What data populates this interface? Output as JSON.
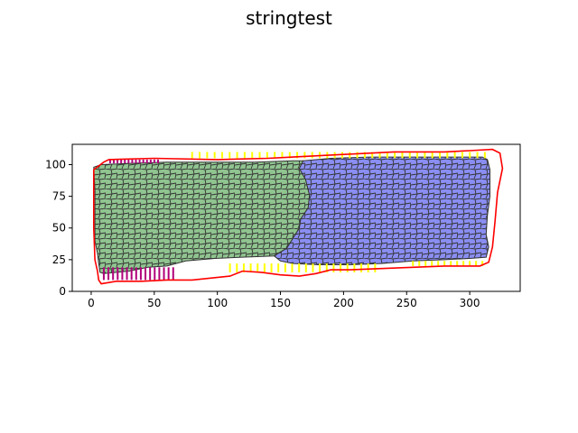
{
  "chart_data": {
    "type": "tissue-plot",
    "title": "stringtest",
    "xlim": [
      -15,
      340
    ],
    "ylim": [
      0,
      116
    ],
    "xticks": [
      0,
      50,
      100,
      150,
      200,
      250,
      300
    ],
    "yticks": [
      0,
      25,
      50,
      75,
      100
    ],
    "grid": false,
    "regions": [
      {
        "color": "#90c490",
        "polygon": [
          [
            2,
            98
          ],
          [
            8,
            100
          ],
          [
            30,
            101
          ],
          [
            60,
            102
          ],
          [
            100,
            102
          ],
          [
            130,
            102
          ],
          [
            160,
            103
          ],
          [
            168,
            103
          ],
          [
            165,
            97
          ],
          [
            170,
            88
          ],
          [
            173,
            76
          ],
          [
            172,
            66
          ],
          [
            166,
            57
          ],
          [
            165,
            50
          ],
          [
            160,
            42
          ],
          [
            155,
            34
          ],
          [
            145,
            28
          ],
          [
            120,
            27
          ],
          [
            98,
            26
          ],
          [
            75,
            24
          ],
          [
            60,
            20
          ],
          [
            45,
            19
          ],
          [
            30,
            16
          ],
          [
            20,
            15
          ],
          [
            10,
            14
          ],
          [
            7,
            15
          ],
          [
            6,
            22
          ],
          [
            5,
            30
          ],
          [
            3,
            40
          ],
          [
            3,
            60
          ],
          [
            3,
            80
          ]
        ]
      },
      {
        "color": "#8a8ef2",
        "polygon": [
          [
            168,
            103
          ],
          [
            190,
            105
          ],
          [
            220,
            106
          ],
          [
            260,
            106
          ],
          [
            290,
            106
          ],
          [
            310,
            106
          ],
          [
            314,
            104
          ],
          [
            316,
            96
          ],
          [
            316,
            75
          ],
          [
            314,
            60
          ],
          [
            313,
            45
          ],
          [
            315,
            35
          ],
          [
            313,
            27
          ],
          [
            300,
            26
          ],
          [
            280,
            25
          ],
          [
            255,
            24
          ],
          [
            230,
            22
          ],
          [
            205,
            21
          ],
          [
            180,
            21
          ],
          [
            160,
            22
          ],
          [
            150,
            24
          ],
          [
            145,
            28
          ],
          [
            155,
            34
          ],
          [
            160,
            42
          ],
          [
            165,
            50
          ],
          [
            166,
            57
          ],
          [
            172,
            66
          ],
          [
            173,
            76
          ],
          [
            170,
            88
          ],
          [
            165,
            97
          ]
        ]
      }
    ],
    "outline": {
      "color": "#ff0000",
      "points": [
        [
          14,
          104
        ],
        [
          50,
          105
        ],
        [
          100,
          104
        ],
        [
          140,
          105
        ],
        [
          160,
          106
        ],
        [
          200,
          108
        ],
        [
          240,
          110
        ],
        [
          280,
          110
        ],
        [
          300,
          111
        ],
        [
          318,
          112
        ],
        [
          324,
          109
        ],
        [
          326,
          97
        ],
        [
          322,
          78
        ],
        [
          320,
          55
        ],
        [
          318,
          35
        ],
        [
          315,
          23
        ],
        [
          308,
          20
        ],
        [
          280,
          20
        ],
        [
          255,
          19
        ],
        [
          230,
          18
        ],
        [
          205,
          17
        ],
        [
          190,
          17
        ],
        [
          178,
          14
        ],
        [
          165,
          12
        ],
        [
          150,
          13
        ],
        [
          135,
          15
        ],
        [
          120,
          16
        ],
        [
          110,
          12
        ],
        [
          80,
          9
        ],
        [
          60,
          9
        ],
        [
          40,
          8
        ],
        [
          20,
          8
        ],
        [
          8,
          6
        ],
        [
          6,
          9
        ],
        [
          5,
          16
        ],
        [
          3,
          25
        ],
        [
          2,
          50
        ],
        [
          2,
          80
        ],
        [
          2,
          96
        ],
        [
          10,
          102
        ]
      ]
    },
    "yellow_markers": [
      {
        "x0": 110,
        "x1": 225,
        "y_top": 22,
        "y_bottom": 15,
        "count": 22
      },
      {
        "x0": 255,
        "x1": 310,
        "y_top": 24,
        "y_bottom": 20,
        "count": 12
      },
      {
        "x0": 80,
        "x1": 312,
        "y_top": 110,
        "y_bottom": 105,
        "count": 40
      }
    ],
    "magenta_markers": [
      {
        "x0": 15,
        "x1": 53,
        "y_top": 104,
        "y_bottom": 101,
        "count": 14
      },
      {
        "x0": 10,
        "x1": 65,
        "y_top": 19,
        "y_bottom": 9,
        "count": 16
      }
    ]
  }
}
